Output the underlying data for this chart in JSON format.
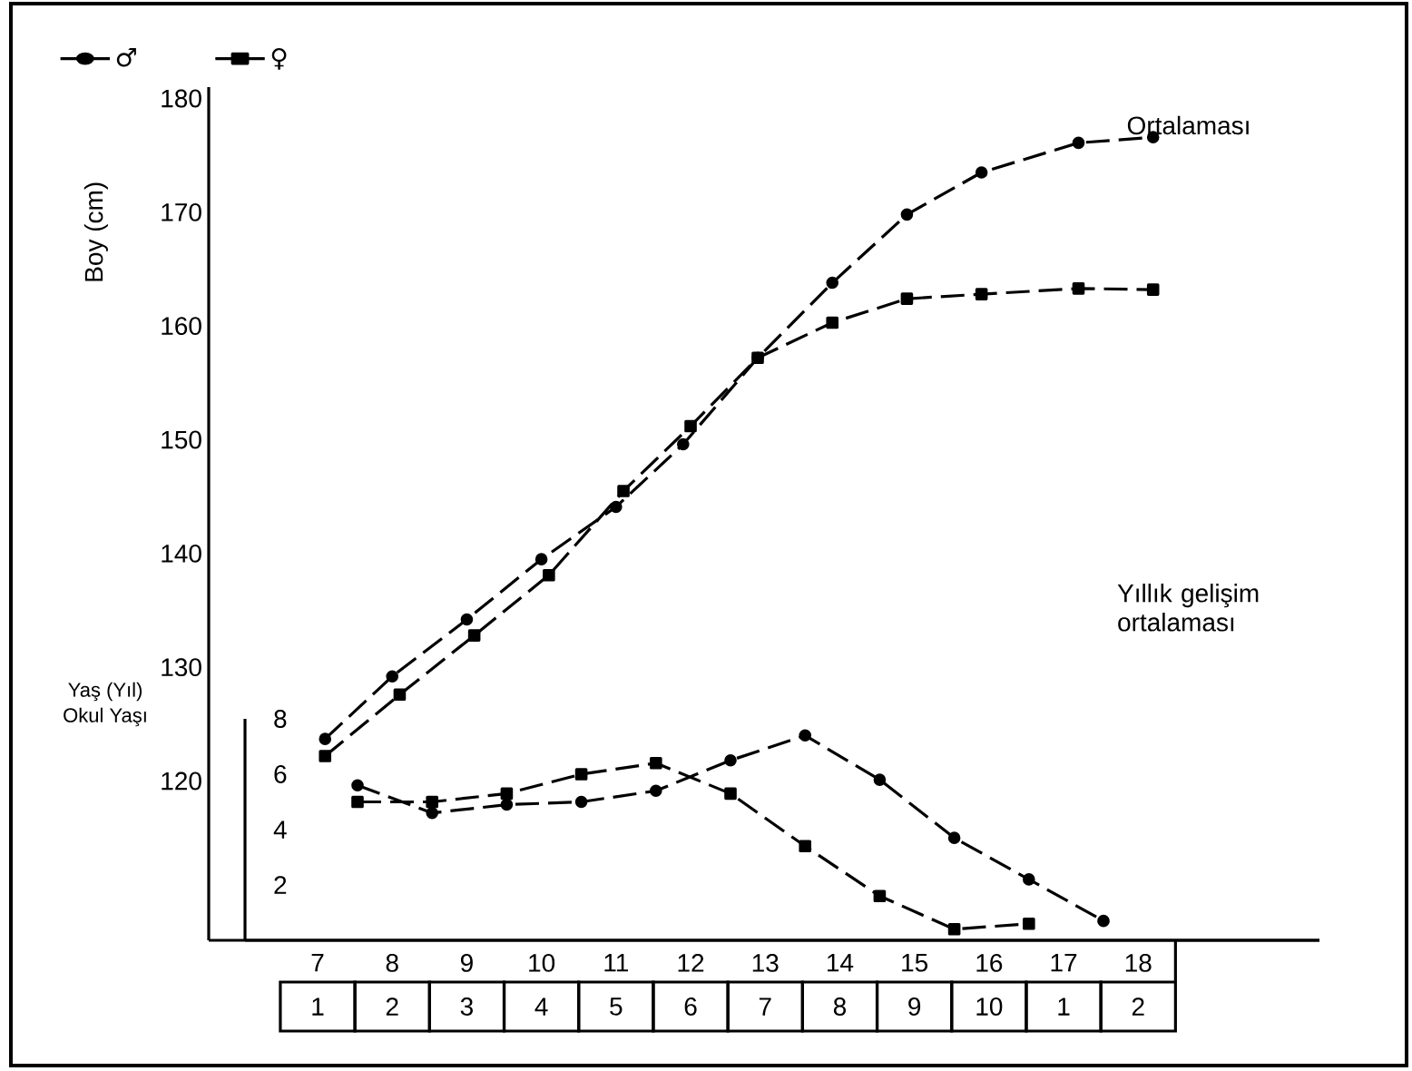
{
  "chart_data": [
    {
      "type": "line",
      "ylabel": "Boy (cm)",
      "xlabel": "Yaş (Yıl)",
      "xlim": [
        5.54,
        20.43
      ],
      "ylim": [
        106,
        181
      ],
      "xticks": [
        7,
        8,
        9,
        10,
        11,
        12,
        13,
        14,
        15,
        16,
        17,
        18
      ],
      "yticks": [
        120,
        130,
        140,
        150,
        160,
        170,
        180
      ],
      "legend": "top left",
      "line_style": "dashed",
      "annotations": [
        "Ortalaması",
        "Okul Yaşı",
        "1",
        "2",
        "3",
        "4",
        "5",
        "6",
        "7",
        "8",
        "9",
        "10",
        "1",
        "2"
      ],
      "series": [
        {
          "name": "♂",
          "color": "#000000",
          "marker": "circle",
          "x": [
            7.1,
            8.0,
            9.0,
            10.0,
            11.0,
            11.9,
            12.9,
            13.9,
            14.9,
            15.9,
            17.2,
            18.2
          ],
          "values": [
            123.7,
            129.2,
            134.2,
            139.5,
            144.1,
            149.6,
            157.2,
            163.8,
            169.8,
            173.5,
            176.1,
            176.6
          ]
        },
        {
          "name": "♀",
          "color": "#000000",
          "marker": "square",
          "x": [
            7.1,
            8.1,
            9.1,
            10.1,
            11.1,
            12.0,
            12.9,
            13.9,
            14.9,
            15.9,
            17.2,
            18.2
          ],
          "values": [
            122.2,
            127.6,
            132.8,
            138.1,
            145.5,
            151.2,
            157.2,
            160.3,
            162.4,
            162.8,
            163.3,
            163.2
          ]
        }
      ]
    },
    {
      "type": "line",
      "categories": [
        null,
        null,
        null,
        null,
        null,
        null,
        null,
        null,
        null,
        null,
        null
      ],
      "ylim": [
        0,
        8
      ],
      "yticks": [
        2,
        4,
        6,
        8
      ],
      "tick_labels": "y",
      "line_style": "dashed",
      "annotations": [
        "Yıllık gelişim ortalaması"
      ],
      "series": [
        {
          "color": "#000000",
          "marker": "circle",
          "values": [
            5.6,
            4.6,
            4.9,
            5.0,
            5.4,
            6.5,
            7.4,
            5.8,
            3.7,
            2.2,
            0.7
          ]
        },
        {
          "color": "#000000",
          "marker": "square",
          "values": [
            5.0,
            5.0,
            5.3,
            6.0,
            6.4,
            5.3,
            3.4,
            1.6,
            0.4,
            0.6,
            null
          ]
        }
      ]
    }
  ]
}
